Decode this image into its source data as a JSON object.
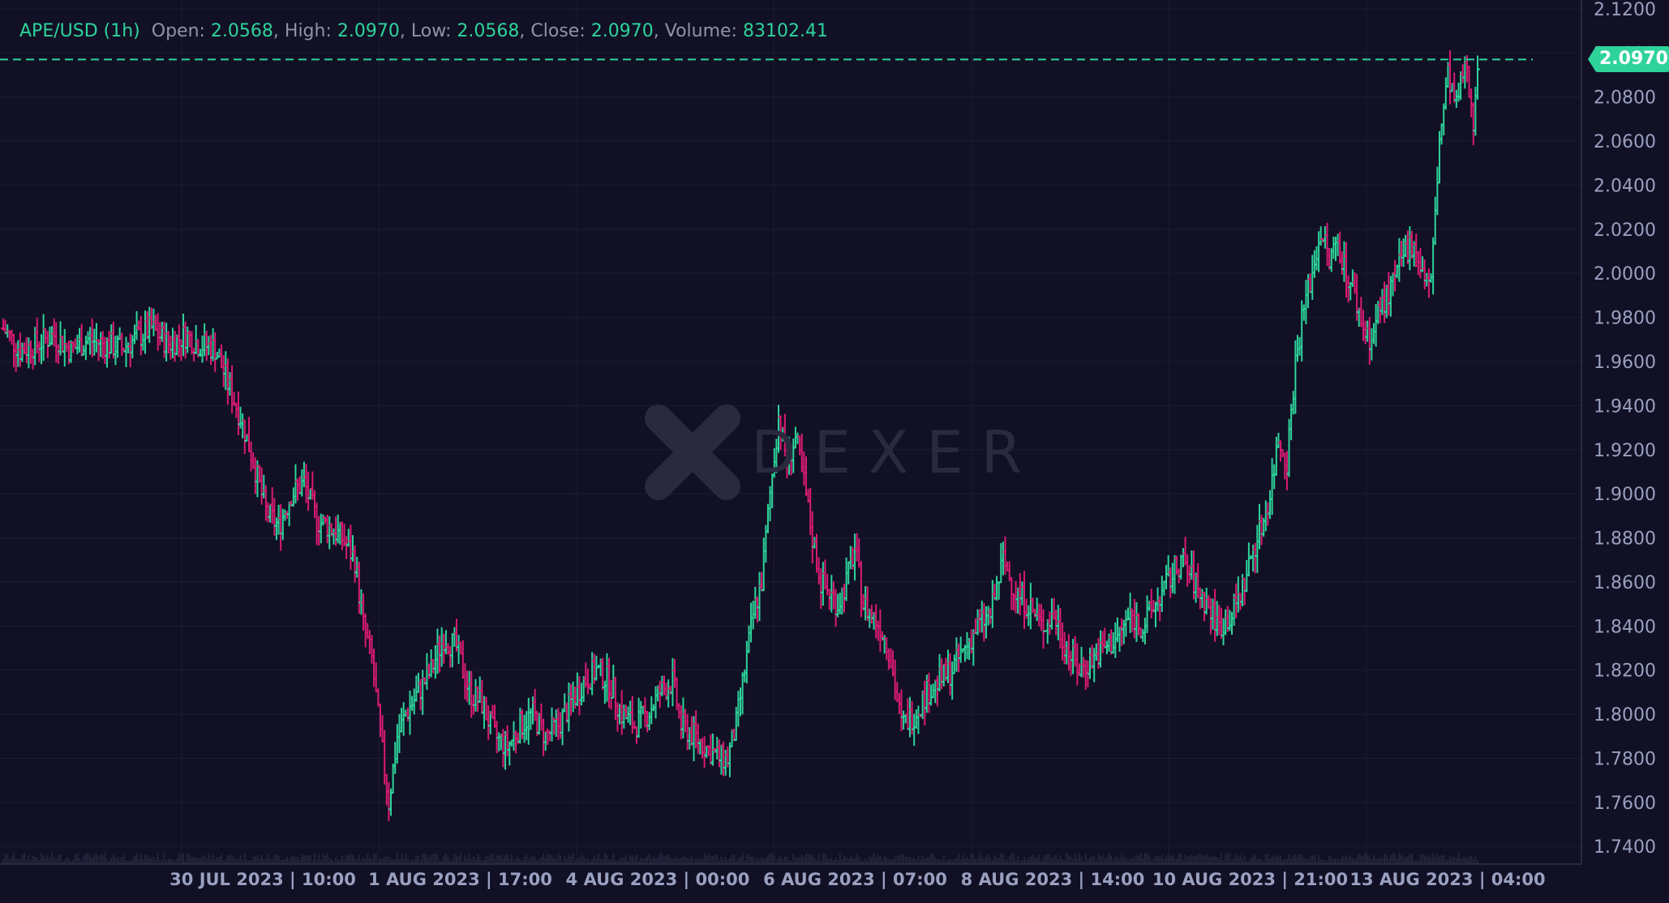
{
  "legend": {
    "symbol": "APE/USD (1h)",
    "open_label": "Open:",
    "open": "2.0568",
    "high_label": "High:",
    "high": "2.0970",
    "low_label": "Low:",
    "low": "2.0568",
    "close_label": "Close:",
    "close": "2.0970",
    "volume_label": "Volume:",
    "volume": "83102.41"
  },
  "watermark": {
    "text": "DEXER"
  },
  "last_price_tag": "2.0970",
  "chart_data": {
    "type": "ohlc",
    "pair": "APE/USD",
    "interval": "1h",
    "y_axis": {
      "side": "right",
      "range": [
        1.732,
        2.124
      ],
      "ticks": [
        "1.7400",
        "1.7600",
        "1.7800",
        "1.8000",
        "1.8200",
        "1.8400",
        "1.8600",
        "1.8800",
        "1.9000",
        "1.9200",
        "1.9400",
        "1.9600",
        "1.9800",
        "2.0000",
        "2.0200",
        "2.0400",
        "2.0600",
        "2.0800",
        "2.1000",
        "2.1200"
      ]
    },
    "x_axis": {
      "ticks": [
        "30 JUL 2023 | 10:00",
        "1 AUG 2023 | 17:00",
        "4 AUG 2023 | 00:00",
        "6 AUG 2023 | 07:00",
        "8 AUG 2023 | 14:00",
        "10 AUG 2023 | 21:00",
        "13 AUG 2023 | 04:00"
      ]
    },
    "last_close_line": 2.097,
    "colors": {
      "up": "#2ed39a",
      "down": "#d81b73",
      "background": "#111025",
      "grid": "#1c1c33",
      "axis_text": "#9aa0bf"
    },
    "close_path": [
      [
        0,
        1.975
      ],
      [
        8,
        1.965
      ],
      [
        16,
        1.968
      ],
      [
        24,
        1.972
      ],
      [
        32,
        1.965
      ],
      [
        40,
        1.97
      ],
      [
        48,
        1.968
      ],
      [
        56,
        1.966
      ],
      [
        62,
        1.97
      ],
      [
        70,
        1.975
      ],
      [
        78,
        1.968
      ],
      [
        86,
        1.972
      ],
      [
        92,
        1.968
      ],
      [
        100,
        1.966
      ],
      [
        106,
        1.95
      ],
      [
        112,
        1.935
      ],
      [
        118,
        1.915
      ],
      [
        124,
        1.892
      ],
      [
        130,
        1.885
      ],
      [
        136,
        1.9
      ],
      [
        142,
        1.905
      ],
      [
        148,
        1.888
      ],
      [
        154,
        1.885
      ],
      [
        160,
        1.88
      ],
      [
        166,
        1.87
      ],
      [
        170,
        1.84
      ],
      [
        174,
        1.825
      ],
      [
        178,
        1.79
      ],
      [
        182,
        1.76
      ],
      [
        186,
        1.79
      ],
      [
        190,
        1.8
      ],
      [
        196,
        1.81
      ],
      [
        202,
        1.82
      ],
      [
        208,
        1.835
      ],
      [
        214,
        1.83
      ],
      [
        220,
        1.81
      ],
      [
        226,
        1.805
      ],
      [
        232,
        1.79
      ],
      [
        238,
        1.785
      ],
      [
        244,
        1.795
      ],
      [
        250,
        1.8
      ],
      [
        256,
        1.79
      ],
      [
        262,
        1.795
      ],
      [
        268,
        1.805
      ],
      [
        274,
        1.815
      ],
      [
        280,
        1.82
      ],
      [
        286,
        1.815
      ],
      [
        292,
        1.8
      ],
      [
        298,
        1.795
      ],
      [
        304,
        1.8
      ],
      [
        310,
        1.81
      ],
      [
        316,
        1.815
      ],
      [
        320,
        1.795
      ],
      [
        326,
        1.79
      ],
      [
        332,
        1.785
      ],
      [
        338,
        1.78
      ],
      [
        342,
        1.78
      ],
      [
        346,
        1.795
      ],
      [
        350,
        1.82
      ],
      [
        354,
        1.845
      ],
      [
        358,
        1.86
      ],
      [
        362,
        1.9
      ],
      [
        366,
        1.935
      ],
      [
        370,
        1.915
      ],
      [
        374,
        1.925
      ],
      [
        378,
        1.905
      ],
      [
        382,
        1.88
      ],
      [
        386,
        1.86
      ],
      [
        390,
        1.855
      ],
      [
        394,
        1.85
      ],
      [
        398,
        1.86
      ],
      [
        402,
        1.875
      ],
      [
        406,
        1.85
      ],
      [
        410,
        1.845
      ],
      [
        414,
        1.84
      ],
      [
        418,
        1.83
      ],
      [
        424,
        1.795
      ],
      [
        430,
        1.8
      ],
      [
        436,
        1.81
      ],
      [
        442,
        1.815
      ],
      [
        448,
        1.82
      ],
      [
        454,
        1.83
      ],
      [
        460,
        1.84
      ],
      [
        466,
        1.845
      ],
      [
        472,
        1.87
      ],
      [
        478,
        1.855
      ],
      [
        484,
        1.85
      ],
      [
        490,
        1.84
      ],
      [
        496,
        1.845
      ],
      [
        502,
        1.83
      ],
      [
        508,
        1.82
      ],
      [
        514,
        1.825
      ],
      [
        520,
        1.83
      ],
      [
        526,
        1.835
      ],
      [
        532,
        1.845
      ],
      [
        538,
        1.84
      ],
      [
        544,
        1.85
      ],
      [
        550,
        1.86
      ],
      [
        556,
        1.87
      ],
      [
        562,
        1.86
      ],
      [
        568,
        1.85
      ],
      [
        574,
        1.84
      ],
      [
        580,
        1.845
      ],
      [
        586,
        1.86
      ],
      [
        590,
        1.875
      ],
      [
        594,
        1.885
      ],
      [
        598,
        1.9
      ],
      [
        602,
        1.925
      ],
      [
        606,
        1.915
      ],
      [
        610,
        1.96
      ],
      [
        614,
        1.985
      ],
      [
        618,
        2.0
      ],
      [
        622,
        2.02
      ],
      [
        626,
        2.005
      ],
      [
        630,
        2.015
      ],
      [
        634,
        2.0
      ],
      [
        638,
        1.99
      ],
      [
        642,
        1.975
      ],
      [
        646,
        1.97
      ],
      [
        650,
        1.985
      ],
      [
        654,
        1.99
      ],
      [
        658,
        2.0
      ],
      [
        662,
        2.01
      ],
      [
        666,
        2.015
      ],
      [
        670,
        2.0
      ],
      [
        674,
        1.995
      ],
      [
        678,
        2.06
      ],
      [
        682,
        2.09
      ],
      [
        686,
        2.075
      ],
      [
        690,
        2.095
      ],
      [
        694,
        2.07
      ],
      [
        696,
        2.097
      ]
    ]
  }
}
